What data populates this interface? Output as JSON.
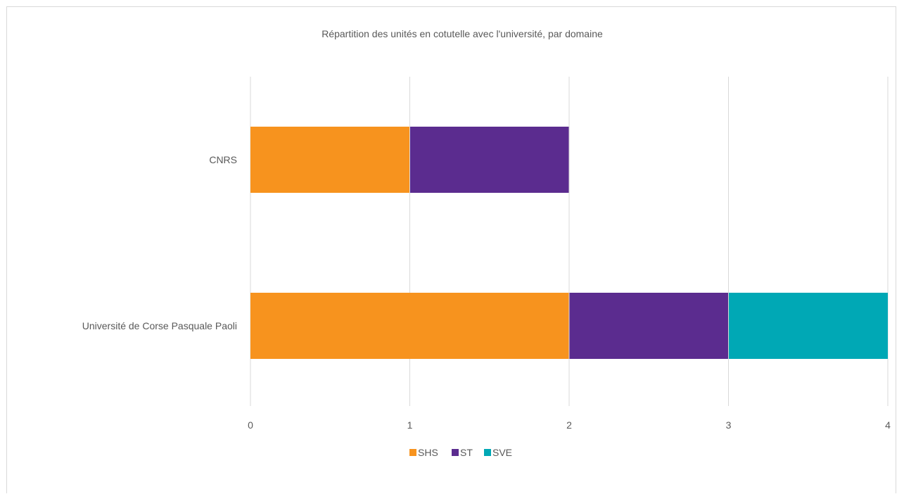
{
  "chart_data": {
    "type": "bar",
    "orientation": "horizontal",
    "stacked": true,
    "title": "Répartition des unités en cotutelle avec l'université, par domaine",
    "categories": [
      "CNRS",
      "Université de Corse Pasquale Paoli"
    ],
    "series": [
      {
        "name": "SHS",
        "values": [
          1,
          2
        ],
        "color": "#F7931E"
      },
      {
        "name": "ST",
        "values": [
          1,
          1
        ],
        "color": "#5B2C8F"
      },
      {
        "name": "SVE",
        "values": [
          0,
          1
        ],
        "color": "#00A8B5"
      }
    ],
    "xlim": [
      0,
      4
    ],
    "xticks": [
      "0",
      "1",
      "2",
      "3",
      "4"
    ],
    "grid": "vertical",
    "legend_position": "bottom"
  }
}
